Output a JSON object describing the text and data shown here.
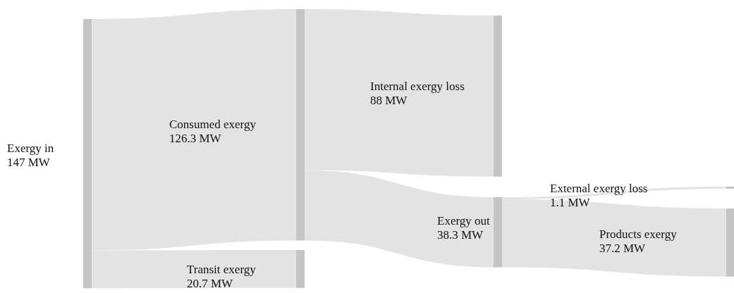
{
  "chart_data": {
    "type": "other",
    "categories": [
      "Exergy in",
      "Consumed exergy",
      "Transit exergy",
      "Internal exergy loss",
      "Exergy out",
      "External exergy loss",
      "Products exergy"
    ],
    "values": [
      147,
      126.3,
      20.7,
      88,
      38.3,
      1.1,
      37.2
    ],
    "value_labels": [
      "147 MW",
      "126.3 MW",
      "20.7 MW",
      "88 MW",
      "38.3 MW",
      "1.1 MW",
      "37.2 MW"
    ]
  }
}
